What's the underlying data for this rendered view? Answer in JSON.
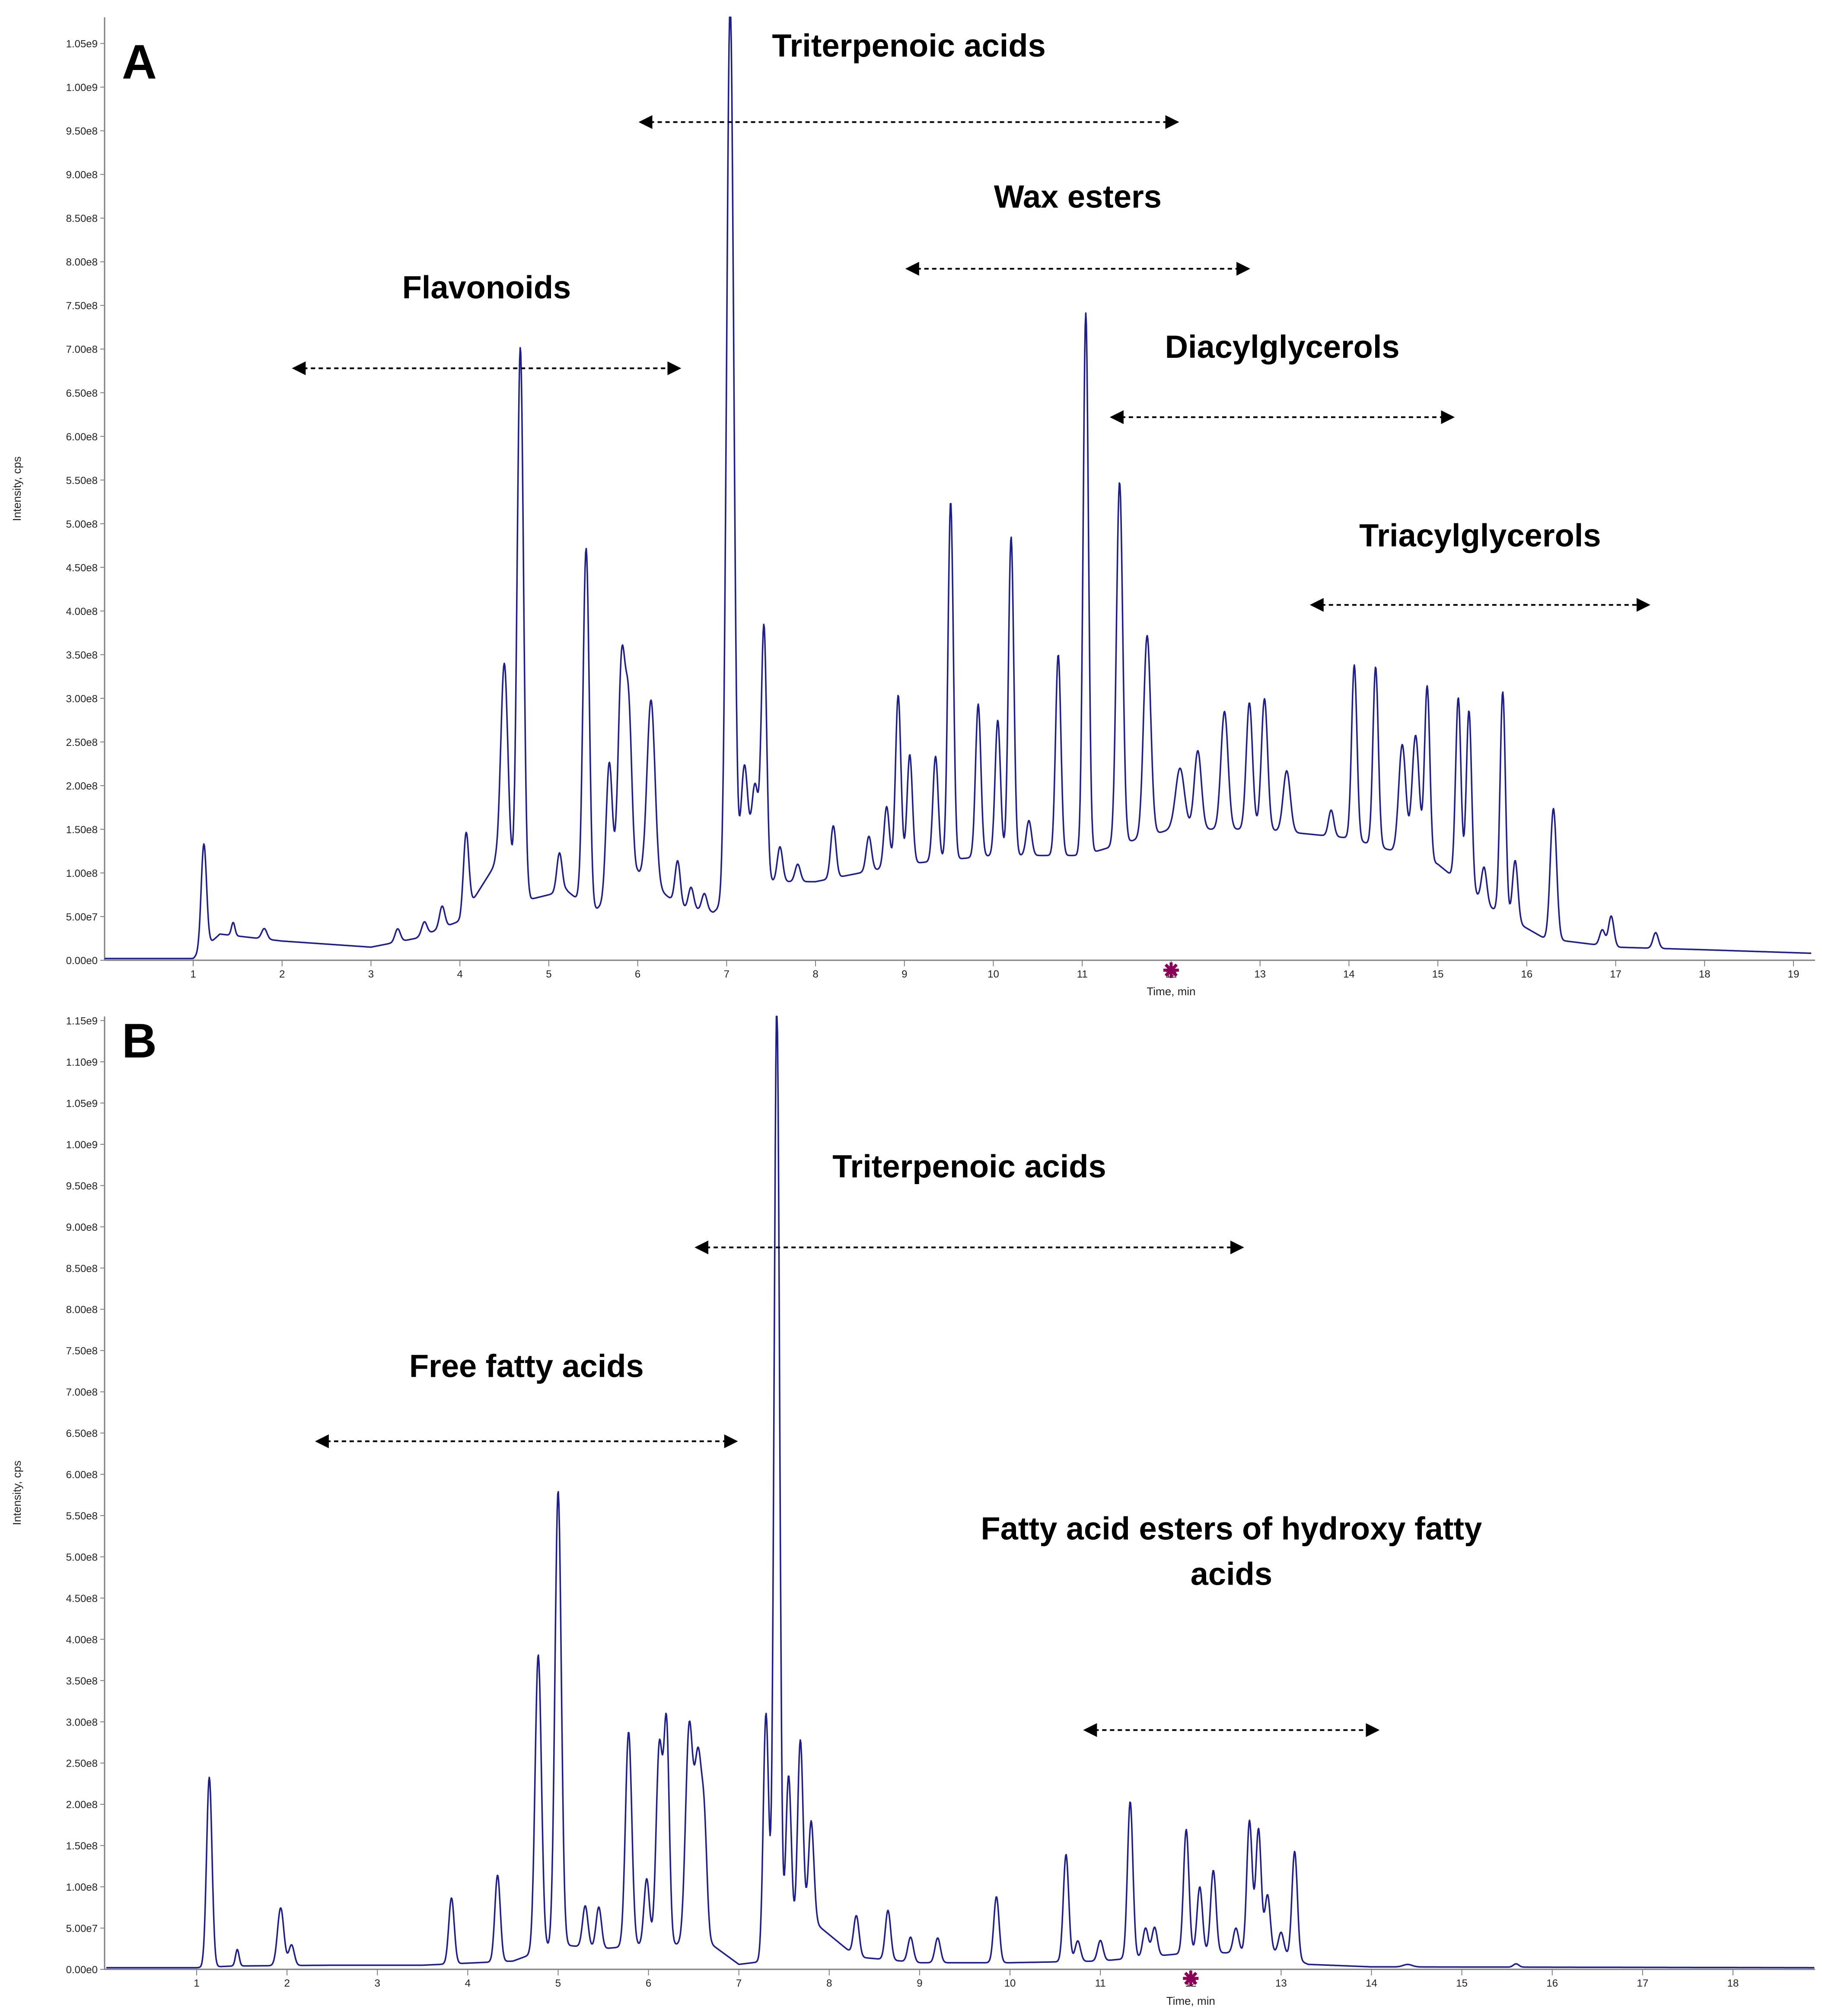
{
  "colors": {
    "trace": "#1e1e8c",
    "axis": "#7f7f7f",
    "arrow": "#000000",
    "marker": "#8b0057"
  },
  "chart_data": [
    {
      "type": "line",
      "panel_label": "A",
      "xlabel": "Time, min",
      "ylabel": "Intensity, cps",
      "xlim": [
        0,
        19.2
      ],
      "ylim": [
        0,
        1080000000.0
      ],
      "x_ticks": [
        "1",
        "2",
        "3",
        "4",
        "5",
        "6",
        "7",
        "8",
        "9",
        "10",
        "11",
        "12",
        "13",
        "14",
        "15",
        "16",
        "17",
        "18",
        "19"
      ],
      "y_ticks": [
        "0.00e0",
        "5.00e7",
        "1.00e8",
        "1.50e8",
        "2.00e8",
        "2.50e8",
        "3.00e8",
        "3.50e8",
        "4.00e8",
        "4.50e8",
        "5.00e8",
        "5.50e8",
        "6.00e8",
        "6.50e8",
        "7.00e8",
        "7.50e8",
        "8.00e8",
        "8.50e8",
        "9.00e8",
        "9.50e8",
        "1.00e9",
        "1.05e9"
      ],
      "marker_x": 12.0,
      "baseline": [
        [
          0,
          2000000.0
        ],
        [
          1.0,
          2000000.0
        ],
        [
          1.3,
          30000000.0
        ],
        [
          2.0,
          22000000.0
        ],
        [
          3.0,
          15000000.0
        ],
        [
          3.5,
          25000000.0
        ],
        [
          4.0,
          45000000.0
        ],
        [
          4.4,
          110000000.0
        ],
        [
          4.8,
          70000000.0
        ],
        [
          5.2,
          80000000.0
        ],
        [
          5.5,
          55000000.0
        ],
        [
          6.0,
          100000000.0
        ],
        [
          6.5,
          60000000.0
        ],
        [
          6.85,
          55000000.0
        ],
        [
          7.3,
          90000000.0
        ],
        [
          8.0,
          90000000.0
        ],
        [
          9.0,
          110000000.0
        ],
        [
          10.0,
          120000000.0
        ],
        [
          11.0,
          120000000.0
        ],
        [
          12.0,
          150000000.0
        ],
        [
          13.0,
          150000000.0
        ],
        [
          14.0,
          140000000.0
        ],
        [
          15.0,
          110000000.0
        ],
        [
          15.6,
          60000000.0
        ],
        [
          16.2,
          25000000.0
        ],
        [
          17.0,
          15000000.0
        ],
        [
          18.0,
          12000000.0
        ],
        [
          19.2,
          8000000.0
        ]
      ],
      "peaks": [
        [
          1.12,
          120000000.0,
          0.03
        ],
        [
          1.45,
          15000000.0,
          0.02
        ],
        [
          1.8,
          12000000.0,
          0.03
        ],
        [
          3.3,
          15000000.0,
          0.03
        ],
        [
          3.6,
          15000000.0,
          0.03
        ],
        [
          3.8,
          25000000.0,
          0.03
        ],
        [
          4.07,
          90000000.0,
          0.03
        ],
        [
          4.5,
          240000000.0,
          0.04
        ],
        [
          4.68,
          620000000.0,
          0.035
        ],
        [
          5.12,
          45000000.0,
          0.03
        ],
        [
          5.42,
          410000000.0,
          0.035
        ],
        [
          5.68,
          155000000.0,
          0.035
        ],
        [
          5.82,
          260000000.0,
          0.04
        ],
        [
          5.9,
          180000000.0,
          0.035
        ],
        [
          6.15,
          210000000.0,
          0.045
        ],
        [
          6.45,
          50000000.0,
          0.03
        ],
        [
          6.6,
          25000000.0,
          0.03
        ],
        [
          6.75,
          20000000.0,
          0.03
        ],
        [
          7.04,
          1030000000.0,
          0.04
        ],
        [
          7.2,
          140000000.0,
          0.04
        ],
        [
          7.32,
          110000000.0,
          0.04
        ],
        [
          7.42,
          290000000.0,
          0.03
        ],
        [
          7.6,
          40000000.0,
          0.03
        ],
        [
          7.8,
          20000000.0,
          0.03
        ],
        [
          8.2,
          60000000.0,
          0.03
        ],
        [
          8.6,
          40000000.0,
          0.03
        ],
        [
          8.8,
          70000000.0,
          0.03
        ],
        [
          8.93,
          195000000.0,
          0.03
        ],
        [
          9.06,
          125000000.0,
          0.03
        ],
        [
          9.35,
          120000000.0,
          0.03
        ],
        [
          9.52,
          410000000.0,
          0.03
        ],
        [
          9.83,
          175000000.0,
          0.03
        ],
        [
          10.05,
          155000000.0,
          0.03
        ],
        [
          10.2,
          365000000.0,
          0.03
        ],
        [
          10.4,
          40000000.0,
          0.03
        ],
        [
          10.73,
          230000000.0,
          0.03
        ],
        [
          11.04,
          620000000.0,
          0.03
        ],
        [
          11.42,
          415000000.0,
          0.035
        ],
        [
          11.73,
          230000000.0,
          0.04
        ],
        [
          12.1,
          70000000.0,
          0.05
        ],
        [
          12.3,
          90000000.0,
          0.04
        ],
        [
          12.6,
          135000000.0,
          0.04
        ],
        [
          12.88,
          145000000.0,
          0.035
        ],
        [
          13.05,
          150000000.0,
          0.035
        ],
        [
          13.3,
          70000000.0,
          0.04
        ],
        [
          13.8,
          30000000.0,
          0.03
        ],
        [
          14.06,
          200000000.0,
          0.03
        ],
        [
          14.3,
          205000000.0,
          0.03
        ],
        [
          14.6,
          125000000.0,
          0.04
        ],
        [
          14.75,
          140000000.0,
          0.04
        ],
        [
          14.88,
          200000000.0,
          0.03
        ],
        [
          15.23,
          210000000.0,
          0.03
        ],
        [
          15.35,
          205000000.0,
          0.03
        ],
        [
          15.52,
          40000000.0,
          0.03
        ],
        [
          15.73,
          255000000.0,
          0.03
        ],
        [
          15.87,
          70000000.0,
          0.03
        ],
        [
          16.3,
          150000000.0,
          0.035
        ],
        [
          16.85,
          18000000.0,
          0.03
        ],
        [
          16.95,
          35000000.0,
          0.03
        ],
        [
          17.45,
          18000000.0,
          0.03
        ]
      ],
      "annotations": [
        {
          "text": "Triterpenoic acids",
          "x_start": 6.0,
          "x_end": 12.1,
          "text_y": 1035000000.0,
          "arrow_y": 960000000.0
        },
        {
          "text": "Wax esters",
          "x_start": 9.0,
          "x_end": 12.9,
          "text_y": 862000000.0,
          "arrow_y": 792000000.0
        },
        {
          "text": "Flavonoids",
          "x_start": 2.1,
          "x_end": 6.5,
          "text_y": 758000000.0,
          "arrow_y": 678000000.0
        },
        {
          "text": "Diacylglycerols",
          "x_start": 11.3,
          "x_end": 15.2,
          "text_y": 690000000.0,
          "arrow_y": 622000000.0
        },
        {
          "text": "Triacylglycerols",
          "x_start": 13.55,
          "x_end": 17.4,
          "text_y": 474000000.0,
          "arrow_y": 407000000.0
        }
      ]
    },
    {
      "type": "line",
      "panel_label": "B",
      "xlabel": "Time, min",
      "ylabel": "Intensity, cps",
      "xlim": [
        0,
        18.9
      ],
      "ylim": [
        0,
        1155000000.0
      ],
      "x_ticks": [
        "1",
        "2",
        "3",
        "4",
        "5",
        "6",
        "7",
        "8",
        "9",
        "10",
        "11",
        "12",
        "13",
        "14",
        "15",
        "16",
        "17",
        "18"
      ],
      "y_ticks": [
        "0.00e0",
        "5.00e7",
        "1.00e8",
        "1.50e8",
        "2.00e8",
        "2.50e8",
        "3.00e8",
        "3.50e8",
        "4.00e8",
        "4.50e8",
        "5.00e8",
        "5.50e8",
        "6.00e8",
        "6.50e8",
        "7.00e8",
        "7.50e8",
        "8.00e8",
        "8.50e8",
        "9.00e8",
        "9.50e8",
        "1.00e9",
        "1.05e9",
        "1.10e9",
        "1.15e9"
      ],
      "marker_x": 12.0,
      "baseline": [
        [
          0,
          2000000.0
        ],
        [
          1.0,
          2000000.0
        ],
        [
          1.4,
          4000000.0
        ],
        [
          2.5,
          5000000.0
        ],
        [
          3.5,
          5000000.0
        ],
        [
          4.5,
          10000000.0
        ],
        [
          5.0,
          30000000.0
        ],
        [
          5.5,
          25000000.0
        ],
        [
          6.0,
          30000000.0
        ],
        [
          6.7,
          30000000.0
        ],
        [
          7.0,
          6000000.0
        ],
        [
          7.3,
          10000000.0
        ],
        [
          7.8,
          60000000.0
        ],
        [
          8.3,
          15000000.0
        ],
        [
          9.0,
          8000000.0
        ],
        [
          10.0,
          8000000.0
        ],
        [
          11.0,
          10000000.0
        ],
        [
          12.0,
          20000000.0
        ],
        [
          13.0,
          20000000.0
        ],
        [
          13.3,
          6000000.0
        ],
        [
          14.0,
          3000000.0
        ],
        [
          18.9,
          2000000.0
        ]
      ],
      "peaks": [
        [
          1.14,
          230000000.0,
          0.03
        ],
        [
          1.45,
          20000000.0,
          0.02
        ],
        [
          1.93,
          70000000.0,
          0.035
        ],
        [
          2.05,
          25000000.0,
          0.03
        ],
        [
          3.82,
          80000000.0,
          0.03
        ],
        [
          4.33,
          105000000.0,
          0.03
        ],
        [
          4.78,
          360000000.0,
          0.035
        ],
        [
          5.0,
          550000000.0,
          0.035
        ],
        [
          5.3,
          50000000.0,
          0.03
        ],
        [
          5.45,
          50000000.0,
          0.03
        ],
        [
          5.78,
          260000000.0,
          0.035
        ],
        [
          5.98,
          80000000.0,
          0.03
        ],
        [
          6.12,
          240000000.0,
          0.035
        ],
        [
          6.2,
          260000000.0,
          0.03
        ],
        [
          6.45,
          260000000.0,
          0.04
        ],
        [
          6.55,
          220000000.0,
          0.04
        ],
        [
          6.62,
          120000000.0,
          0.03
        ],
        [
          7.3,
          300000000.0,
          0.03
        ],
        [
          7.42,
          1150000000.0,
          0.03
        ],
        [
          7.55,
          200000000.0,
          0.03
        ],
        [
          7.68,
          230000000.0,
          0.03
        ],
        [
          7.8,
          120000000.0,
          0.03
        ],
        [
          8.3,
          50000000.0,
          0.03
        ],
        [
          8.65,
          60000000.0,
          0.03
        ],
        [
          8.9,
          30000000.0,
          0.03
        ],
        [
          9.2,
          30000000.0,
          0.03
        ],
        [
          9.85,
          80000000.0,
          0.03
        ],
        [
          10.62,
          130000000.0,
          0.03
        ],
        [
          10.75,
          25000000.0,
          0.03
        ],
        [
          11.0,
          25000000.0,
          0.03
        ],
        [
          11.33,
          190000000.0,
          0.03
        ],
        [
          11.5,
          35000000.0,
          0.03
        ],
        [
          11.6,
          35000000.0,
          0.03
        ],
        [
          11.95,
          150000000.0,
          0.03
        ],
        [
          12.1,
          80000000.0,
          0.03
        ],
        [
          12.25,
          100000000.0,
          0.03
        ],
        [
          12.5,
          30000000.0,
          0.03
        ],
        [
          12.65,
          160000000.0,
          0.03
        ],
        [
          12.75,
          150000000.0,
          0.03
        ],
        [
          12.85,
          70000000.0,
          0.03
        ],
        [
          13.0,
          25000000.0,
          0.03
        ],
        [
          13.15,
          130000000.0,
          0.03
        ],
        [
          14.4,
          3000000.0,
          0.05
        ],
        [
          15.6,
          4000000.0,
          0.03
        ]
      ],
      "annotations": [
        {
          "text": "Triterpenoic acids",
          "x_start": 6.5,
          "x_end": 12.6,
          "text_y": 960000000.0,
          "arrow_y": 875000000.0
        },
        {
          "text": "Free fatty acids",
          "x_start": 2.3,
          "x_end": 7.0,
          "text_y": 718000000.0,
          "arrow_y": 640000000.0
        },
        {
          "text": "Fatty acid esters of hydroxy fatty",
          "text_line2": "acids",
          "x_start": 10.8,
          "x_end": 14.1,
          "text_y": 521000000.0,
          "arrow_y": 290000000.0
        }
      ]
    }
  ]
}
